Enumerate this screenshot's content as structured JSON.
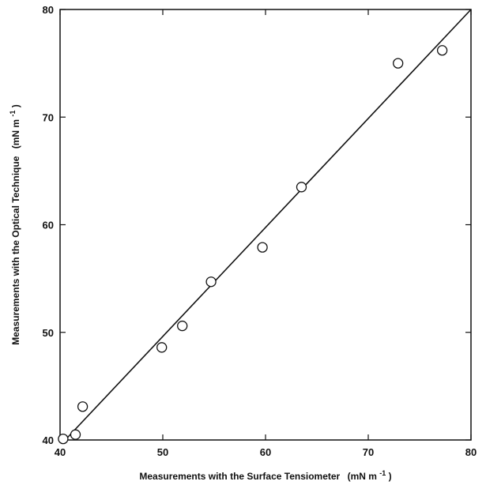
{
  "chart_data": {
    "type": "scatter",
    "title": "",
    "xlabel": "Measurements with the Surface Tensiometer",
    "xunit": "(mN m",
    "xunit_exp": "-1",
    "xunit_close": ")",
    "ylabel": "Measurements with the Optical Technique",
    "yunit": "(mN m",
    "yunit_exp": "-1",
    "yunit_close": ")",
    "xlim": [
      40,
      80
    ],
    "ylim": [
      40,
      80
    ],
    "xticks": [
      40,
      50,
      60,
      70,
      80
    ],
    "yticks": [
      40,
      50,
      60,
      70,
      80
    ],
    "xtick_labels": [
      "40",
      "50",
      "60",
      "70",
      "80"
    ],
    "ytick_labels": [
      "40",
      "50",
      "60",
      "70",
      "80"
    ],
    "grid": false,
    "marker": "open-circle",
    "points": [
      {
        "x": 40.3,
        "y": 40.1
      },
      {
        "x": 41.5,
        "y": 40.5
      },
      {
        "x": 42.2,
        "y": 43.1
      },
      {
        "x": 49.9,
        "y": 48.6
      },
      {
        "x": 51.9,
        "y": 50.6
      },
      {
        "x": 54.7,
        "y": 54.7
      },
      {
        "x": 59.7,
        "y": 57.9
      },
      {
        "x": 63.5,
        "y": 63.5
      },
      {
        "x": 72.9,
        "y": 75.0
      },
      {
        "x": 77.2,
        "y": 76.2
      }
    ],
    "fit_line": {
      "x": [
        40.5,
        80.0
      ],
      "y": [
        40.0,
        80.0
      ]
    }
  }
}
